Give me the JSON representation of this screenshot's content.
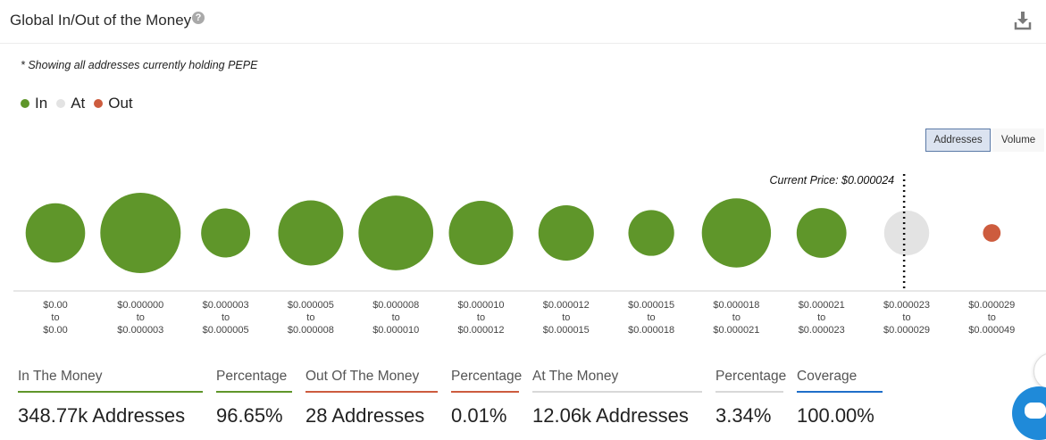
{
  "header": {
    "title": "Global In/Out of the Money",
    "help_icon": "question-mark-icon",
    "download_icon": "download-icon"
  },
  "note": "* Showing all addresses currently holding PEPE",
  "legend": [
    {
      "label": "In",
      "color": "#5f962a"
    },
    {
      "label": "At",
      "color": "#e3e3e3"
    },
    {
      "label": "Out",
      "color": "#cd5c3e"
    }
  ],
  "toggle": {
    "addresses": "Addresses",
    "volume": "Volume",
    "active": "Addresses"
  },
  "chart_data": {
    "type": "bubble",
    "metric": "addresses",
    "annotation": "Current Price: $0.000024",
    "current_price_between_bins": [
      9,
      10
    ],
    "categories": [
      {
        "from": "$0.00",
        "to": "$0.00",
        "status": "in",
        "relative_size": 0.74
      },
      {
        "from": "$0.000000",
        "to": "$0.000003",
        "status": "in",
        "relative_size": 1.0
      },
      {
        "from": "$0.000003",
        "to": "$0.000005",
        "status": "in",
        "relative_size": 0.61
      },
      {
        "from": "$0.000005",
        "to": "$0.000008",
        "status": "in",
        "relative_size": 0.81
      },
      {
        "from": "$0.000008",
        "to": "$0.000010",
        "status": "in",
        "relative_size": 0.93
      },
      {
        "from": "$0.000010",
        "to": "$0.000012",
        "status": "in",
        "relative_size": 0.8
      },
      {
        "from": "$0.000012",
        "to": "$0.000015",
        "status": "in",
        "relative_size": 0.69
      },
      {
        "from": "$0.000015",
        "to": "$0.000018",
        "status": "in",
        "relative_size": 0.57
      },
      {
        "from": "$0.000018",
        "to": "$0.000021",
        "status": "in",
        "relative_size": 0.86
      },
      {
        "from": "$0.000021",
        "to": "$0.000023",
        "status": "in",
        "relative_size": 0.62
      },
      {
        "from": "$0.000023",
        "to": "$0.000029",
        "status": "at",
        "relative_size": 0.56
      },
      {
        "from": "$0.000029",
        "to": "$0.000049",
        "status": "out",
        "relative_size": 0.22
      }
    ]
  },
  "stats": [
    {
      "label": "In The Money",
      "value": "348.77k Addresses",
      "color": "#5f962a"
    },
    {
      "label": "Percentage",
      "value": "96.65%",
      "color": "#5f962a"
    },
    {
      "label": "Out Of The Money",
      "value": "28 Addresses",
      "color": "#cd5c3e"
    },
    {
      "label": "Percentage",
      "value": "0.01%",
      "color": "#cd5c3e"
    },
    {
      "label": "At The Money",
      "value": "12.06k Addresses",
      "color": "#d8d8d8"
    },
    {
      "label": "Percentage",
      "value": "3.34%",
      "color": "#d8d8d8"
    },
    {
      "label": "Coverage",
      "value": "100.00%",
      "color": "#1f6fc9"
    }
  ]
}
